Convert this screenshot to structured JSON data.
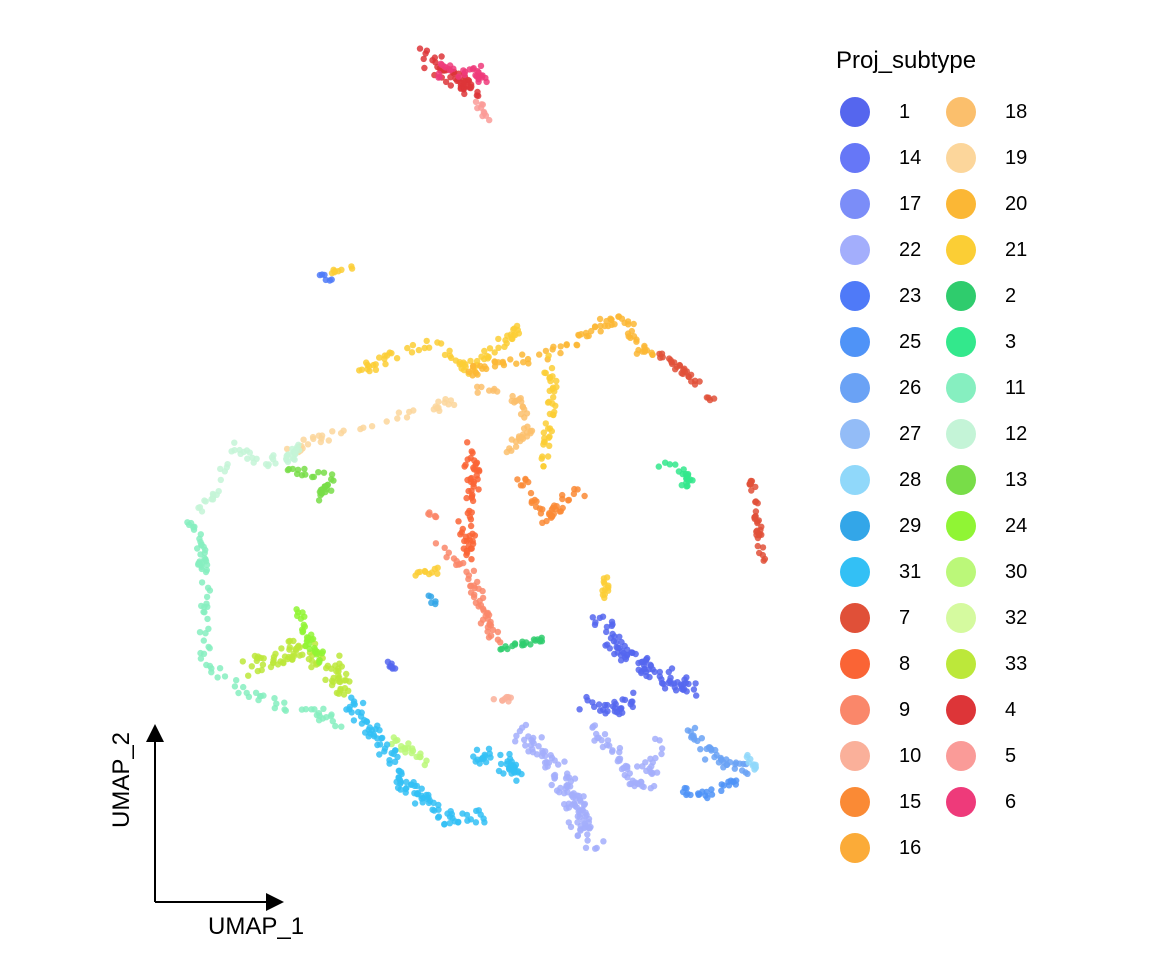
{
  "chart_data": {
    "type": "scatter",
    "xlabel": "UMAP_1",
    "ylabel": "UMAP_2",
    "legend_title": "Proj_subtype",
    "legend_position": "right",
    "grid": false,
    "series": [
      {
        "name": "1",
        "color": "#5566ee"
      },
      {
        "name": "14",
        "color": "#6677f7"
      },
      {
        "name": "17",
        "color": "#7b8df8"
      },
      {
        "name": "22",
        "color": "#a3aefc"
      },
      {
        "name": "23",
        "color": "#4f7af8"
      },
      {
        "name": "25",
        "color": "#4f93f7"
      },
      {
        "name": "26",
        "color": "#6aa2f5"
      },
      {
        "name": "27",
        "color": "#93bcf7"
      },
      {
        "name": "28",
        "color": "#90d8fa"
      },
      {
        "name": "29",
        "color": "#33a6e8"
      },
      {
        "name": "31",
        "color": "#33c0f5"
      },
      {
        "name": "7",
        "color": "#e05038"
      },
      {
        "name": "8",
        "color": "#fa6435"
      },
      {
        "name": "9",
        "color": "#fa876a"
      },
      {
        "name": "10",
        "color": "#fab09a"
      },
      {
        "name": "15",
        "color": "#fa8a35"
      },
      {
        "name": "16",
        "color": "#fbab38"
      },
      {
        "name": "18",
        "color": "#fbbf6c"
      },
      {
        "name": "19",
        "color": "#fcd69b"
      },
      {
        "name": "20",
        "color": "#fbb735"
      },
      {
        "name": "21",
        "color": "#fbce35"
      },
      {
        "name": "2",
        "color": "#2fcc6d"
      },
      {
        "name": "3",
        "color": "#33e88c"
      },
      {
        "name": "11",
        "color": "#86efc0"
      },
      {
        "name": "12",
        "color": "#c4f4d7"
      },
      {
        "name": "13",
        "color": "#78dd48"
      },
      {
        "name": "24",
        "color": "#90f534"
      },
      {
        "name": "30",
        "color": "#bbf879"
      },
      {
        "name": "32",
        "color": "#d5fa9f"
      },
      {
        "name": "33",
        "color": "#bce83a"
      },
      {
        "name": "4",
        "color": "#dd3538"
      },
      {
        "name": "5",
        "color": "#fa9b98"
      },
      {
        "name": "6",
        "color": "#ee3a7a"
      }
    ]
  }
}
